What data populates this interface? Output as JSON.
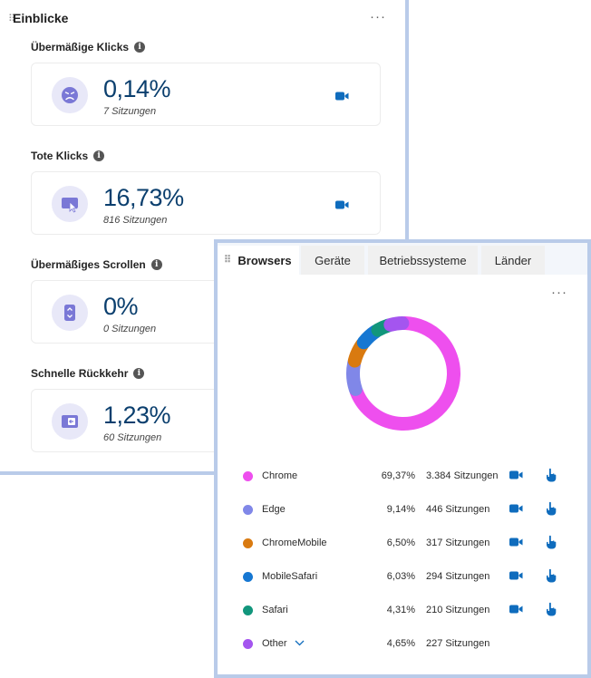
{
  "insights": {
    "title": "Einblicke",
    "more_label": "···",
    "metrics": [
      {
        "label": "Übermäßige Klicks",
        "value": "0,14%",
        "sessions": "7 Sitzungen",
        "icon": "angry-face-icon"
      },
      {
        "label": "Tote Klicks",
        "value": "16,73%",
        "sessions": "816 Sitzungen",
        "icon": "dead-click-icon"
      },
      {
        "label": "Übermäßiges Scrollen",
        "value": "0%",
        "sessions": "0 Sitzungen",
        "icon": "scroll-icon"
      },
      {
        "label": "Schnelle Rückkehr",
        "value": "1,23%",
        "sessions": "60 Sitzungen",
        "icon": "quick-back-icon"
      }
    ]
  },
  "browsers": {
    "tabs": [
      "Browsers",
      "Geräte",
      "Betriebssysteme",
      "Länder"
    ],
    "active_tab": "Browsers",
    "more_label": "···",
    "rows": [
      {
        "name": "Chrome",
        "pct": "69,37%",
        "sessions": "3.384 Sitzungen",
        "color": "#ee4fee",
        "share": 69.37
      },
      {
        "name": "Edge",
        "pct": "9,14%",
        "sessions": "446 Sitzungen",
        "color": "#8087e8",
        "share": 9.14
      },
      {
        "name": "ChromeMobile",
        "pct": "6,50%",
        "sessions": "317 Sitzungen",
        "color": "#d97a10",
        "share": 6.5
      },
      {
        "name": "MobileSafari",
        "pct": "6,03%",
        "sessions": "294 Sitzungen",
        "color": "#1677d2",
        "share": 6.03
      },
      {
        "name": "Safari",
        "pct": "4,31%",
        "sessions": "210 Sitzungen",
        "color": "#12967c",
        "share": 4.31
      },
      {
        "name": "Other",
        "pct": "4,65%",
        "sessions": "227 Sitzungen",
        "color": "#a455ef",
        "share": 4.65
      }
    ]
  },
  "colors": {
    "accent_blue": "#0f6cbd",
    "value_text": "#0b3f6e",
    "icon_bg": "#e8e8f8",
    "icon_fg": "#6e6ed0"
  }
}
